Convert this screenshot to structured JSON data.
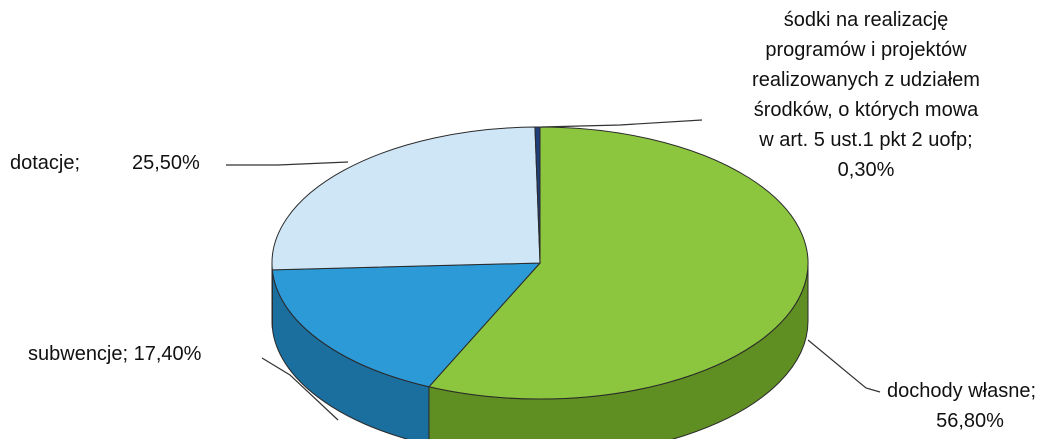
{
  "chart_data": {
    "type": "pie",
    "style": "3d",
    "slices": [
      {
        "name": "dochody własne",
        "value": 56.8,
        "value_label": "56,80%",
        "color": "#8cc63f",
        "side_color": "#5f8f22",
        "label_lines": [
          "dochody własne;",
          "56,80%"
        ]
      },
      {
        "name": "subwencje",
        "value": 17.4,
        "value_label": "17,40%",
        "color": "#2b9ad6",
        "side_color": "#1b6f9f",
        "label_lines": [
          "subwencje; 17,40%"
        ]
      },
      {
        "name": "dotacje",
        "value": 25.5,
        "value_label": "25,50%",
        "color": "#cfe6f7",
        "side_color": "#9fc3df",
        "label_lines": [
          "dotacje;",
          "25,50%"
        ]
      },
      {
        "name": "śodki na realizację programów i projektów realizowanych z udziałem środków, o których mowa w art. 5 ust.1 pkt 2 uofp",
        "value": 0.3,
        "value_label": "0,30%",
        "color": "#1f3f7a",
        "side_color": "#142a55",
        "label_lines": [
          "śodki na realizację",
          "programów i projektów",
          "realizowanych z udziałem",
          "środków, o których mowa",
          "w art. 5 ust.1 pkt 2 uofp;",
          "0,30%"
        ]
      }
    ],
    "start_angle_deg": 0,
    "direction": "clockwise",
    "legend": "none"
  }
}
